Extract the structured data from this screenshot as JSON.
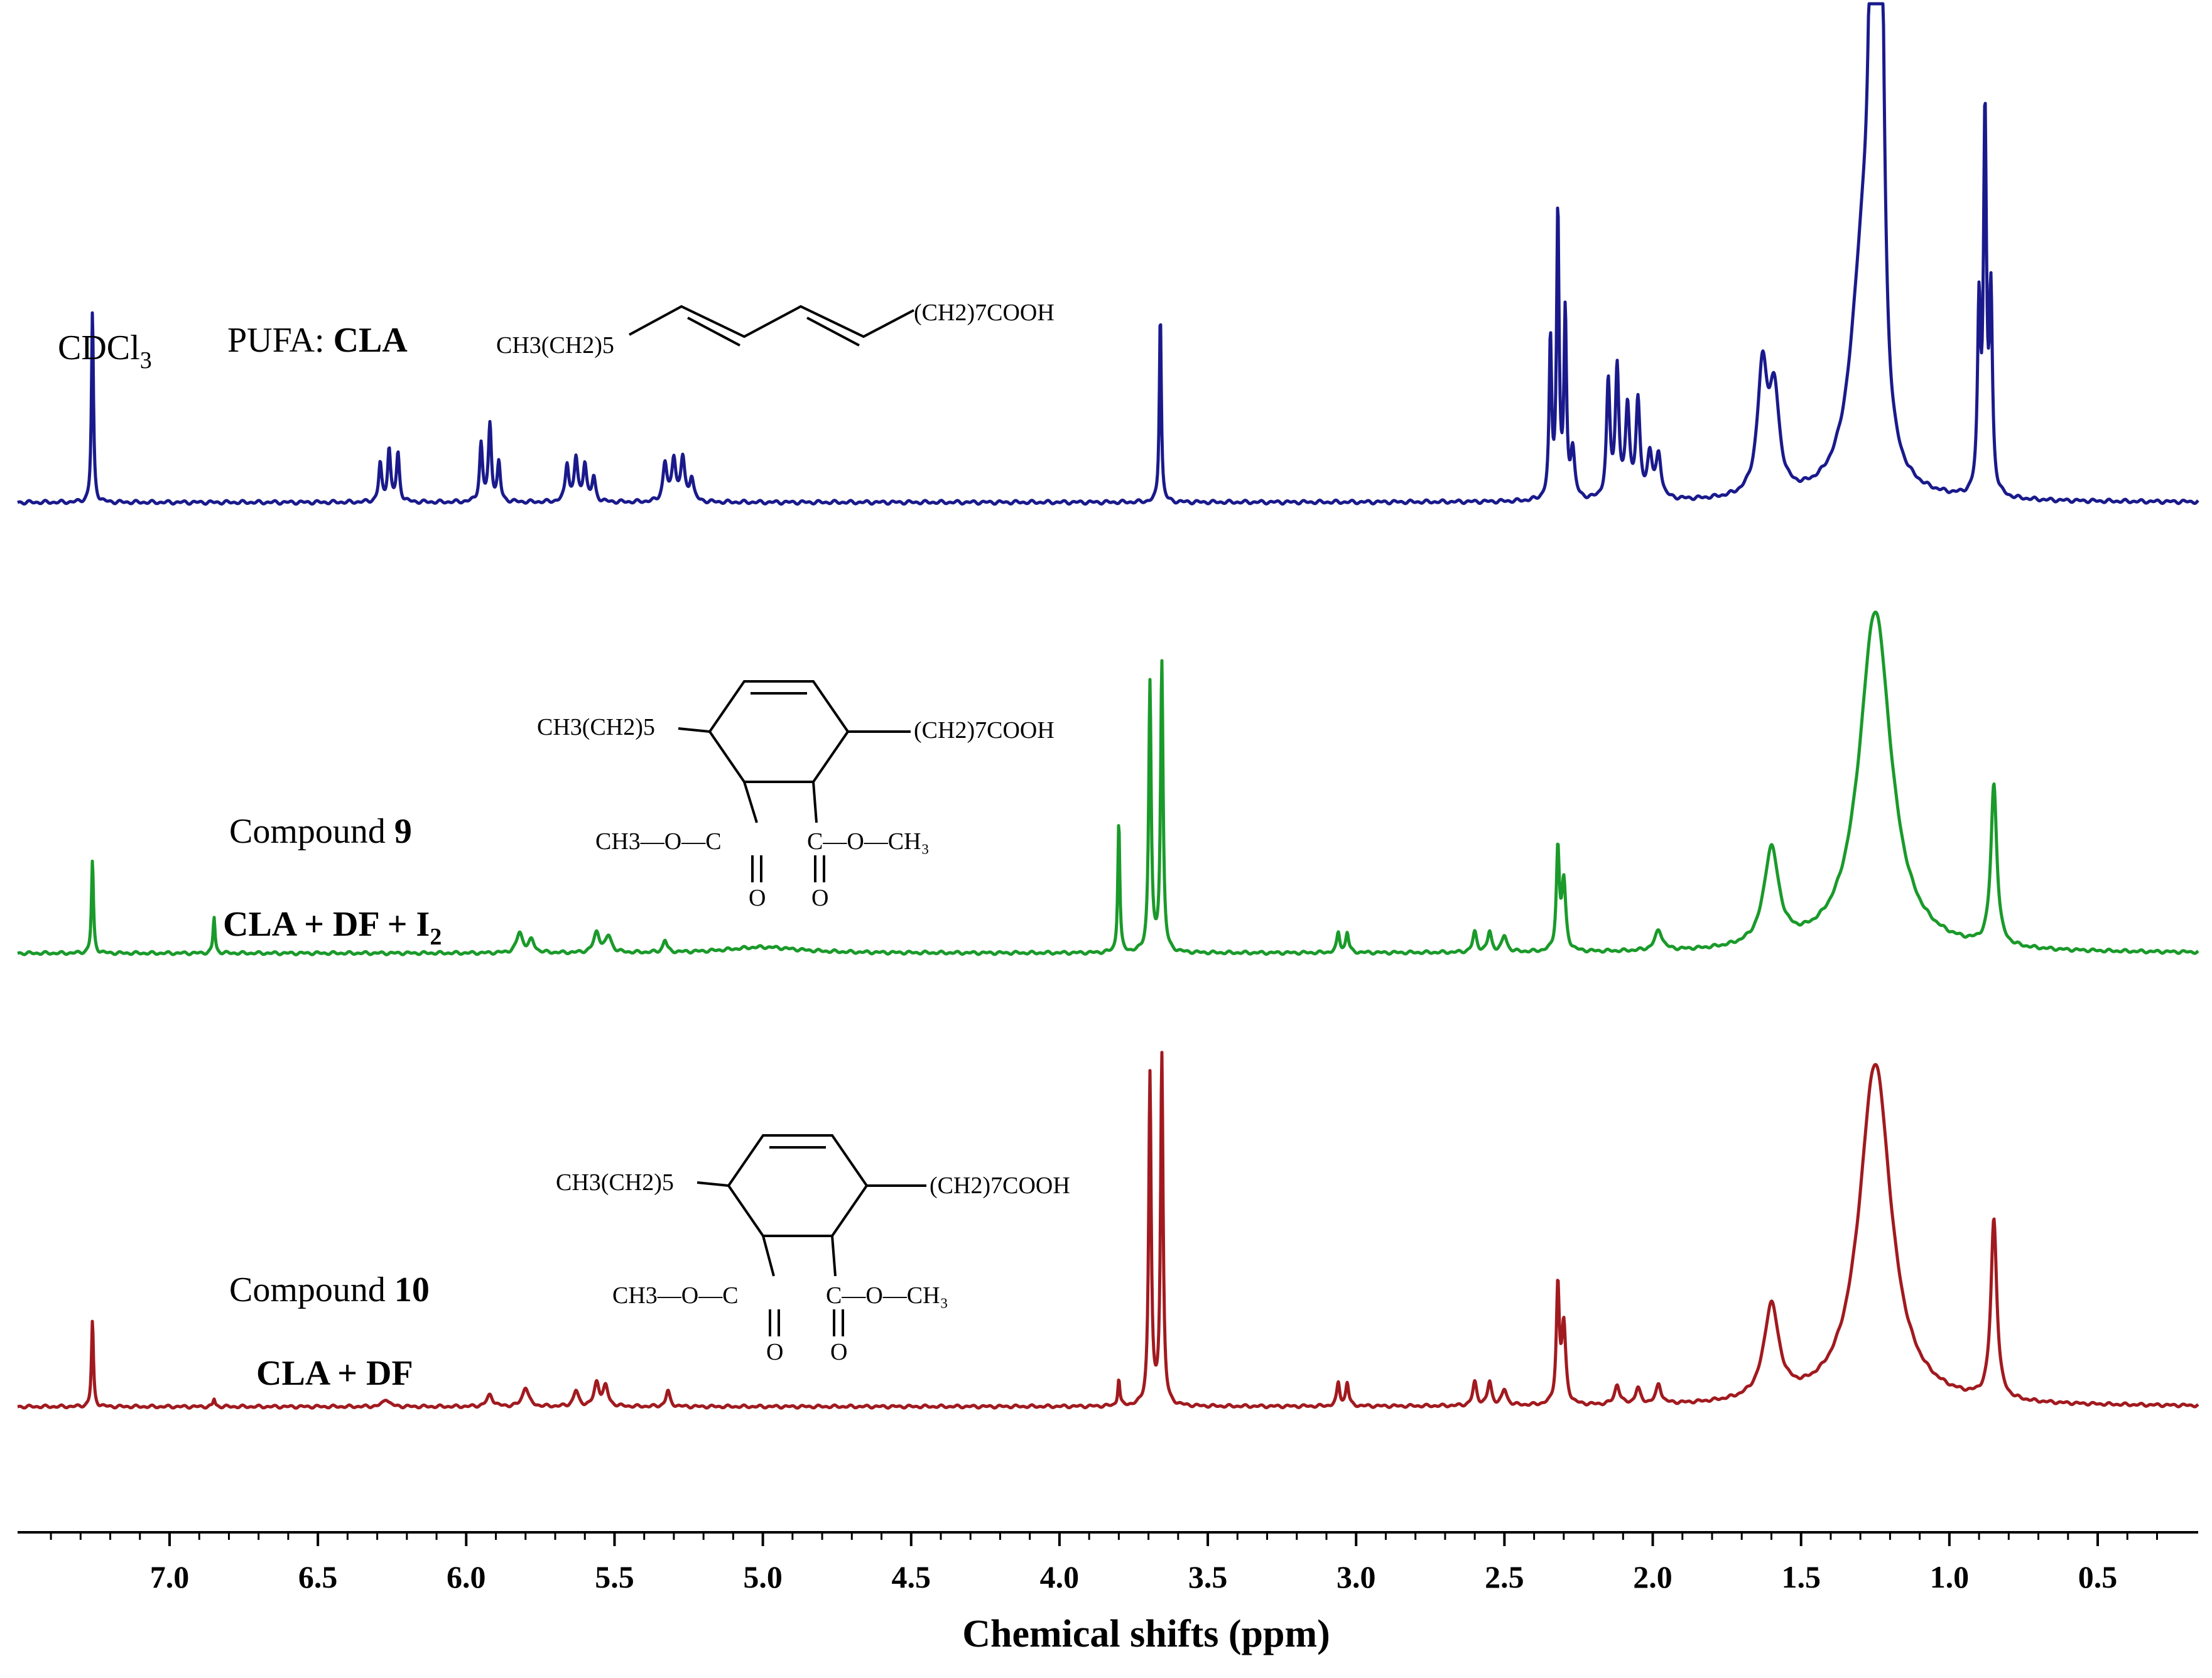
{
  "chart_data": {
    "type": "line",
    "title": "",
    "xlabel": "Chemical shifts (ppm)",
    "ylabel": "",
    "xlim": [
      7.5,
      0.25
    ],
    "x_reversed": true,
    "grid": false,
    "ticks": [
      "7.0",
      "6.5",
      "6.0",
      "5.5",
      "5.0",
      "4.5",
      "4.0",
      "3.5",
      "3.0",
      "2.5",
      "2.0",
      "1.5",
      "1.0",
      "0.5"
    ],
    "solvent_label": "CDCl",
    "solvent_sub": "3",
    "series": [
      {
        "name": "CLA",
        "prefix": "PUFA: ",
        "bold": "CLA",
        "color": "#1A1A8C",
        "structure_left": "CH3(CH2)5",
        "structure_right": "(CH2)7COOH",
        "peaks": [
          {
            "ppm": 7.26,
            "h": 0.4,
            "w": 0.004
          },
          {
            "ppm": 6.29,
            "h": 0.08,
            "w": 0.006
          },
          {
            "ppm": 6.26,
            "h": 0.11,
            "w": 0.006
          },
          {
            "ppm": 6.23,
            "h": 0.1,
            "w": 0.006
          },
          {
            "ppm": 5.95,
            "h": 0.12,
            "w": 0.006
          },
          {
            "ppm": 5.92,
            "h": 0.16,
            "w": 0.006
          },
          {
            "ppm": 5.89,
            "h": 0.08,
            "w": 0.006
          },
          {
            "ppm": 5.66,
            "h": 0.08,
            "w": 0.007
          },
          {
            "ppm": 5.63,
            "h": 0.09,
            "w": 0.007
          },
          {
            "ppm": 5.6,
            "h": 0.08,
            "w": 0.007
          },
          {
            "ppm": 5.57,
            "h": 0.05,
            "w": 0.007
          },
          {
            "ppm": 5.33,
            "h": 0.08,
            "w": 0.008
          },
          {
            "ppm": 5.3,
            "h": 0.09,
            "w": 0.008
          },
          {
            "ppm": 5.27,
            "h": 0.09,
            "w": 0.008
          },
          {
            "ppm": 5.24,
            "h": 0.05,
            "w": 0.008
          },
          {
            "ppm": 3.66,
            "h": 0.4,
            "w": 0.004
          },
          {
            "ppm": 2.345,
            "h": 0.33,
            "w": 0.005
          },
          {
            "ppm": 2.32,
            "h": 0.6,
            "w": 0.005
          },
          {
            "ppm": 2.295,
            "h": 0.38,
            "w": 0.005
          },
          {
            "ppm": 2.27,
            "h": 0.1,
            "w": 0.008
          },
          {
            "ppm": 2.15,
            "h": 0.24,
            "w": 0.007
          },
          {
            "ppm": 2.12,
            "h": 0.27,
            "w": 0.007
          },
          {
            "ppm": 2.085,
            "h": 0.19,
            "w": 0.008
          },
          {
            "ppm": 2.05,
            "h": 0.2,
            "w": 0.008
          },
          {
            "ppm": 2.01,
            "h": 0.09,
            "w": 0.01
          },
          {
            "ppm": 1.98,
            "h": 0.09,
            "w": 0.01
          },
          {
            "ppm": 1.63,
            "h": 0.26,
            "w": 0.02
          },
          {
            "ppm": 1.59,
            "h": 0.2,
            "w": 0.02
          },
          {
            "ppm": 1.26,
            "h": 1.05,
            "w": 0.012
          },
          {
            "ppm": 1.23,
            "h": 1.05,
            "w": 0.012
          },
          {
            "ppm": 1.29,
            "h": 0.5,
            "w": 0.05
          },
          {
            "ppm": 0.9,
            "h": 0.38,
            "w": 0.006
          },
          {
            "ppm": 0.88,
            "h": 0.78,
            "w": 0.006
          },
          {
            "ppm": 0.86,
            "h": 0.4,
            "w": 0.006
          }
        ]
      },
      {
        "name": "Compound 9",
        "label": "Compound ",
        "bold": "9",
        "reaction": "CLA + DF + I",
        "reaction_sub": "2",
        "color": "#1A9A2A",
        "structure_left": "CH3(CH2)5",
        "structure_right": "(CH2)7COOH",
        "ester": "CH3—O—C",
        "peaks": [
          {
            "ppm": 7.26,
            "h": 0.23,
            "w": 0.004
          },
          {
            "ppm": 6.85,
            "h": 0.09,
            "w": 0.004
          },
          {
            "ppm": 5.82,
            "h": 0.05,
            "w": 0.012
          },
          {
            "ppm": 5.78,
            "h": 0.03,
            "w": 0.012
          },
          {
            "ppm": 5.56,
            "h": 0.05,
            "w": 0.012
          },
          {
            "ppm": 5.52,
            "h": 0.04,
            "w": 0.012
          },
          {
            "ppm": 5.33,
            "h": 0.03,
            "w": 0.008
          },
          {
            "ppm": 5.0,
            "h": 0.015,
            "w": 0.15
          },
          {
            "ppm": 3.8,
            "h": 0.33,
            "w": 0.004
          },
          {
            "ppm": 3.695,
            "h": 0.67,
            "w": 0.005
          },
          {
            "ppm": 3.655,
            "h": 0.72,
            "w": 0.005
          },
          {
            "ppm": 3.06,
            "h": 0.05,
            "w": 0.006
          },
          {
            "ppm": 3.03,
            "h": 0.05,
            "w": 0.006
          },
          {
            "ppm": 2.6,
            "h": 0.05,
            "w": 0.008
          },
          {
            "ppm": 2.55,
            "h": 0.05,
            "w": 0.008
          },
          {
            "ppm": 2.5,
            "h": 0.04,
            "w": 0.01
          },
          {
            "ppm": 2.32,
            "h": 0.25,
            "w": 0.006
          },
          {
            "ppm": 2.3,
            "h": 0.17,
            "w": 0.008
          },
          {
            "ppm": 1.98,
            "h": 0.05,
            "w": 0.015
          },
          {
            "ppm": 1.6,
            "h": 0.24,
            "w": 0.03
          },
          {
            "ppm": 1.25,
            "h": 0.85,
            "w": 0.065
          },
          {
            "ppm": 0.85,
            "h": 0.4,
            "w": 0.012
          }
        ]
      },
      {
        "name": "Compound 10",
        "label": "Compound ",
        "bold": "10",
        "reaction": "CLA + DF",
        "color": "#A11A1F",
        "structure_left": "CH3(CH2)5",
        "structure_right": "(CH2)7COOH",
        "ester": "CH3—O—C",
        "peaks": [
          {
            "ppm": 7.26,
            "h": 0.22,
            "w": 0.004
          },
          {
            "ppm": 6.85,
            "h": 0.02,
            "w": 0.004
          },
          {
            "ppm": 6.27,
            "h": 0.02,
            "w": 0.012
          },
          {
            "ppm": 5.92,
            "h": 0.03,
            "w": 0.012
          },
          {
            "ppm": 5.8,
            "h": 0.05,
            "w": 0.012
          },
          {
            "ppm": 5.63,
            "h": 0.04,
            "w": 0.01
          },
          {
            "ppm": 5.56,
            "h": 0.06,
            "w": 0.01
          },
          {
            "ppm": 5.53,
            "h": 0.05,
            "w": 0.01
          },
          {
            "ppm": 5.32,
            "h": 0.04,
            "w": 0.008
          },
          {
            "ppm": 3.8,
            "h": 0.07,
            "w": 0.004
          },
          {
            "ppm": 3.695,
            "h": 0.85,
            "w": 0.005
          },
          {
            "ppm": 3.655,
            "h": 0.9,
            "w": 0.005
          },
          {
            "ppm": 3.06,
            "h": 0.06,
            "w": 0.006
          },
          {
            "ppm": 3.03,
            "h": 0.06,
            "w": 0.006
          },
          {
            "ppm": 2.6,
            "h": 0.06,
            "w": 0.008
          },
          {
            "ppm": 2.55,
            "h": 0.06,
            "w": 0.008
          },
          {
            "ppm": 2.5,
            "h": 0.04,
            "w": 0.01
          },
          {
            "ppm": 2.32,
            "h": 0.3,
            "w": 0.006
          },
          {
            "ppm": 2.3,
            "h": 0.2,
            "w": 0.008
          },
          {
            "ppm": 2.12,
            "h": 0.05,
            "w": 0.01
          },
          {
            "ppm": 2.05,
            "h": 0.04,
            "w": 0.01
          },
          {
            "ppm": 1.98,
            "h": 0.05,
            "w": 0.01
          },
          {
            "ppm": 1.6,
            "h": 0.24,
            "w": 0.03
          },
          {
            "ppm": 1.25,
            "h": 0.88,
            "w": 0.065
          },
          {
            "ppm": 0.85,
            "h": 0.46,
            "w": 0.012
          }
        ]
      }
    ]
  }
}
